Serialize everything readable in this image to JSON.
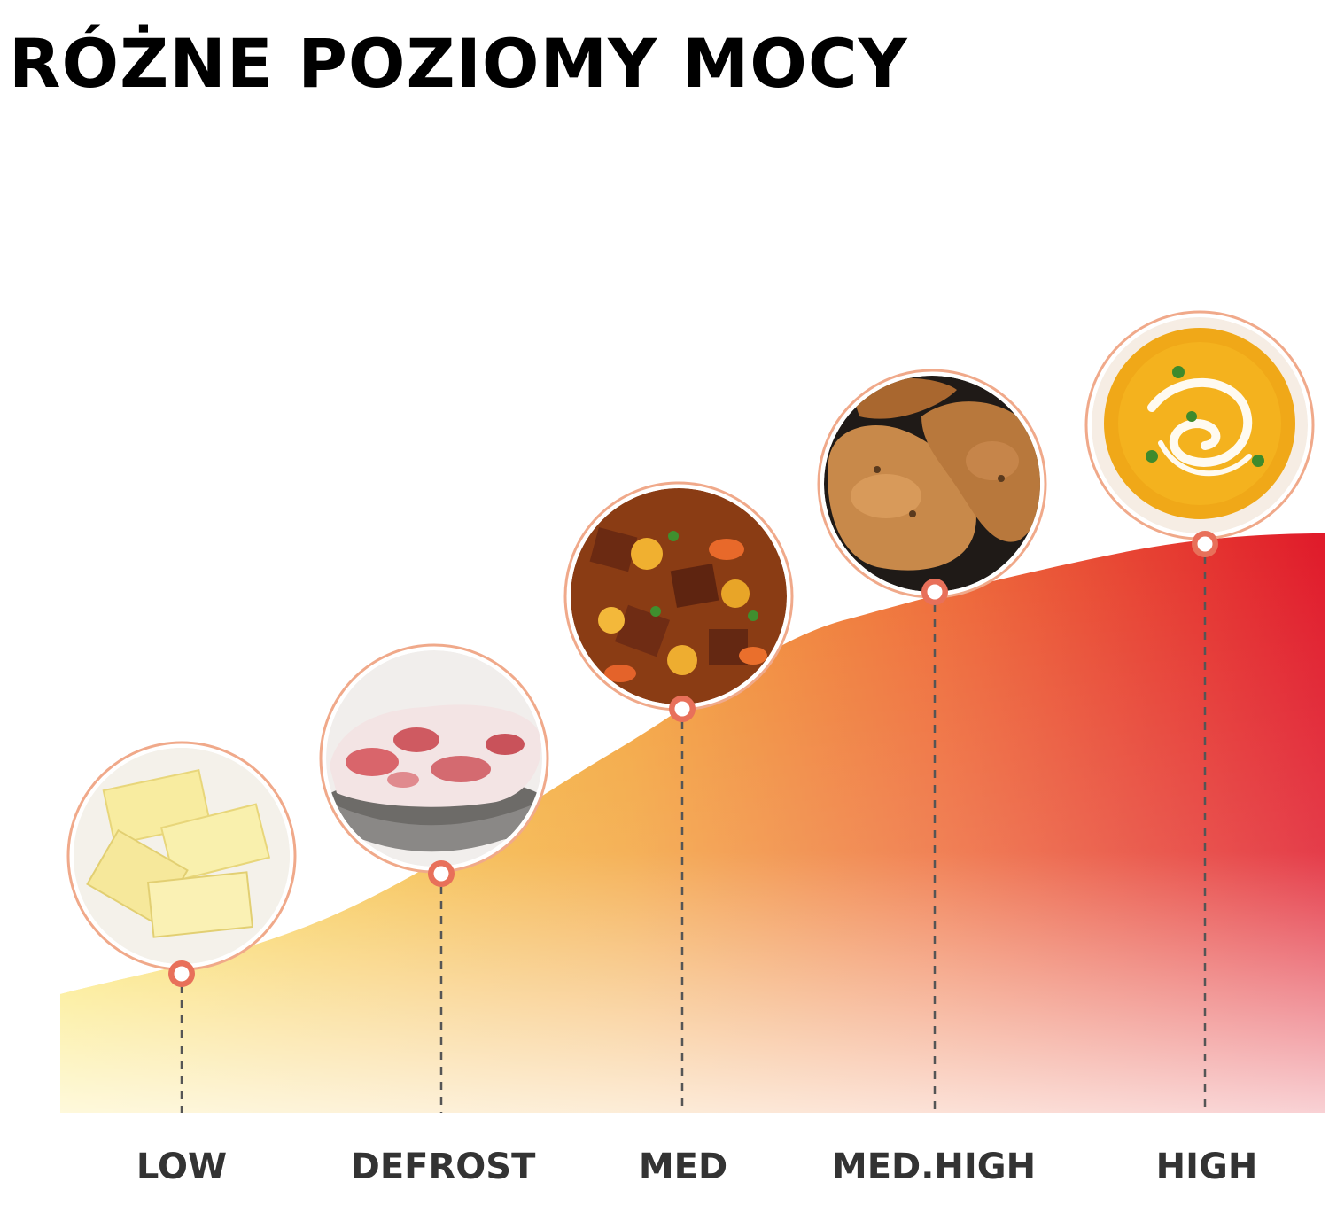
{
  "title": "RÓŻNE POZIOMY MOCY",
  "colors": {
    "curve_start": "#f9dc4a",
    "curve_mid": "#f29a3a",
    "curve_end": "#e21d2b",
    "marker_ring": "#e8705a",
    "dash_line": "#555555"
  },
  "levels": [
    {
      "label": "LOW",
      "food_icon": "butter-icon"
    },
    {
      "label": "DEFROST",
      "food_icon": "frozen-meat-icon"
    },
    {
      "label": "MED",
      "food_icon": "stew-icon"
    },
    {
      "label": "MED.HIGH",
      "food_icon": "roast-chicken-icon"
    },
    {
      "label": "HIGH",
      "food_icon": "soup-icon"
    }
  ]
}
